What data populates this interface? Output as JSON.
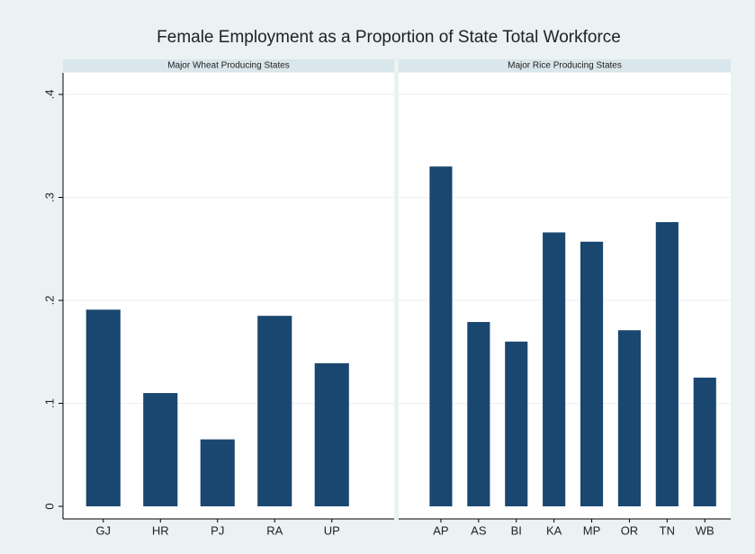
{
  "title": "Female Employment as a Proportion of State Total Workforce",
  "chart_data": [
    {
      "type": "bar",
      "title": "Major Wheat Producing States",
      "categories": [
        "GJ",
        "HR",
        "PJ",
        "RA",
        "UP"
      ],
      "values": [
        0.191,
        0.11,
        0.065,
        0.185,
        0.139
      ],
      "color": "#1a476f",
      "ylim": [
        0,
        0.4
      ],
      "yticks": [
        0,
        {
          "value": 0.1,
          "label": ".1"
        },
        {
          "value": 0.2,
          "label": ".2"
        },
        {
          "value": 0.3,
          "label": ".3"
        },
        {
          "value": 0.4,
          "label": ".4"
        }
      ],
      "grid": true
    },
    {
      "type": "bar",
      "title": "Major Rice Producing States",
      "categories": [
        "AP",
        "AS",
        "BI",
        "KA",
        "MP",
        "OR",
        "TN",
        "WB"
      ],
      "values": [
        0.33,
        0.179,
        0.16,
        0.266,
        0.257,
        0.171,
        0.276,
        0.125
      ],
      "color": "#1a476f",
      "grid": true
    }
  ]
}
